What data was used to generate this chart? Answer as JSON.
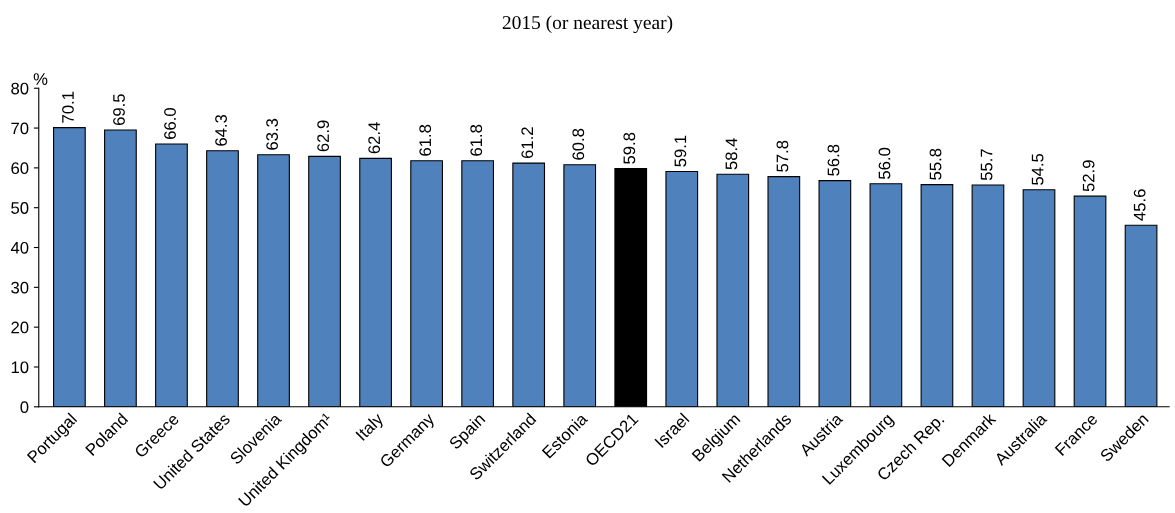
{
  "chart_data": {
    "type": "bar",
    "title": "2015 (or nearest year)",
    "ylabel": "%",
    "categories": [
      "Portugal",
      "Poland",
      "Greece",
      "United States",
      "Slovenia",
      "United Kingdom¹",
      "Italy",
      "Germany",
      "Spain",
      "Switzerland",
      "Estonia",
      "OECD21",
      "Israel",
      "Belgium",
      "Netherlands",
      "Austria",
      "Luxembourg",
      "Czech Rep.",
      "Denmark",
      "Australia",
      "France",
      "Sweden"
    ],
    "values": [
      70.1,
      69.5,
      66.0,
      64.3,
      63.3,
      62.9,
      62.4,
      61.8,
      61.8,
      61.2,
      60.8,
      59.8,
      59.1,
      58.4,
      57.8,
      56.8,
      56.0,
      55.8,
      55.7,
      54.5,
      52.9,
      45.6
    ],
    "value_labels": [
      "70.1",
      "69.5",
      "66.0",
      "64.3",
      "63.3",
      "62.9",
      "62.4",
      "61.8",
      "61.8",
      "61.2",
      "60.8",
      "59.8",
      "59.1",
      "58.4",
      "57.8",
      "56.8",
      "56.0",
      "55.8",
      "55.7",
      "54.5",
      "52.9",
      "45.6"
    ],
    "colors": [
      "#4f81bd",
      "#4f81bd",
      "#4f81bd",
      "#4f81bd",
      "#4f81bd",
      "#4f81bd",
      "#4f81bd",
      "#4f81bd",
      "#4f81bd",
      "#4f81bd",
      "#4f81bd",
      "#000000",
      "#4f81bd",
      "#4f81bd",
      "#4f81bd",
      "#4f81bd",
      "#4f81bd",
      "#4f81bd",
      "#4f81bd",
      "#4f81bd",
      "#4f81bd",
      "#4f81bd"
    ],
    "ylim": [
      0,
      80
    ],
    "yticks": [
      0,
      10,
      20,
      30,
      40,
      50,
      60,
      70,
      80
    ],
    "grid": false,
    "legend": false
  }
}
